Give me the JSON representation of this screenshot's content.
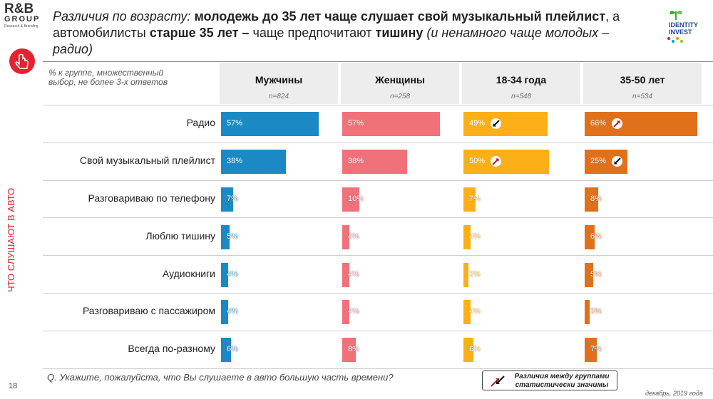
{
  "header": {
    "logo_brand": "R&B",
    "logo_group": "GROUP",
    "logo_tagline": "Research & Branding",
    "title_italic": "Различия по возрасту:",
    "title_bold1": "молодежь до 35 лет чаще слушает свой музыкальный плейлист",
    "title_plain1": ", а автомобилисты",
    "title_bold2": "старше 35 лет –",
    "title_plain2": "чаще предпочитают",
    "title_bold3": "тишину",
    "title_italic2": "(и ненамного чаще молодых – радио)",
    "partner_logo_line1": "IDENTITY",
    "partner_logo_line2": "INVEST"
  },
  "sidebar": {
    "section_label": "ЧТО СЛУШАЮТ В АВТО"
  },
  "note": "% к группе, множественный выбор, не более 3-х ответов",
  "colors": {
    "men": "#1b8ac4",
    "women": "#f07179",
    "age18_34": "#fcaf17",
    "age35_50": "#e1701b"
  },
  "chart_data": {
    "type": "bar",
    "orientation": "horizontal",
    "categories": [
      "Радио",
      "Свой музыкальный плейлист",
      "Разговариваю по телефону",
      "Люблю тишину",
      "Аудиокниги",
      "Разговариваю с пассажиром",
      "Всегда по-разному"
    ],
    "series": [
      {
        "name": "Мужчины",
        "n_label": "n=824",
        "values": [
          57,
          38,
          7,
          5,
          4,
          4,
          6
        ],
        "labels": [
          "57%",
          "38%",
          "7%",
          "5%",
          "4%",
          "4%",
          "6%"
        ],
        "sig": [
          "",
          "",
          "",
          "",
          "",
          "",
          ""
        ]
      },
      {
        "name": "Женщины",
        "n_label": "n=258",
        "values": [
          57,
          38,
          10,
          4,
          4,
          4,
          8
        ],
        "labels": [
          "57%",
          "38%",
          "10%",
          "4%",
          "4%",
          "4%",
          "8%"
        ],
        "sig": [
          "",
          "",
          "",
          "",
          "",
          "",
          ""
        ]
      },
      {
        "name": "18-34 года",
        "n_label": "n=548",
        "values": [
          49,
          50,
          7,
          4,
          3,
          4,
          6
        ],
        "labels": [
          "49%",
          "50%",
          "7%",
          "4%",
          "3%",
          "4%",
          "6%"
        ],
        "sig": [
          "down",
          "up",
          "",
          "",
          "",
          "",
          ""
        ]
      },
      {
        "name": "35-50 лет",
        "n_label": "n=534",
        "values": [
          66,
          25,
          8,
          6,
          5,
          3,
          7
        ],
        "labels": [
          "66%",
          "25%",
          "8%",
          "6%",
          "5%",
          "3%",
          "7%"
        ],
        "sig": [
          "up",
          "down",
          "",
          "",
          "",
          "",
          ""
        ]
      }
    ],
    "legend_note": "Различия между группами статистически значимы"
  },
  "footer": {
    "question": "Q. Укажите, пожалуйста, что Вы слушаете в авто большую часть времени?",
    "page_number": "18",
    "date": "декабрь, 2019 года"
  }
}
